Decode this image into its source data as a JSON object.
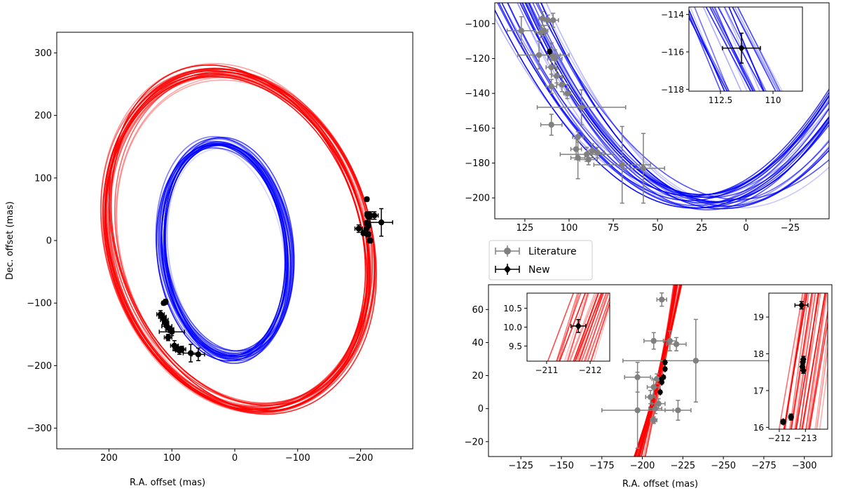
{
  "colors": {
    "outer_orbit": "#ff0000",
    "inner_orbit": "#0000ff",
    "literature": "#808080",
    "new": "#000000",
    "frame": "#000000"
  },
  "legend": {
    "literature_label": "Literature",
    "new_label": "New"
  },
  "chart_data": [
    {
      "id": "main",
      "type": "scatter",
      "title": "",
      "xlabel": "R.A. offset (mas)",
      "ylabel": "Dec. offset (mas)",
      "xlim": [
        283,
        -283
      ],
      "ylim": [
        -333,
        333
      ],
      "xticks": [
        200,
        100,
        0,
        -100,
        -200
      ],
      "yticks": [
        -300,
        -200,
        -100,
        0,
        100,
        200,
        300
      ],
      "orbits": [
        {
          "name": "outer (red)",
          "color": "#ff0000",
          "center": [
            -7,
            0
          ],
          "semi_axes": [
            202,
            275
          ],
          "tilt_deg": -17,
          "n_curves": 22
        },
        {
          "name": "inner (blue)",
          "color": "#0000ff",
          "center": [
            15,
            -15
          ],
          "semi_axes": [
            100,
            172
          ],
          "tilt_deg": -7,
          "n_curves": 22
        }
      ],
      "points": [
        {
          "x": 113,
          "y": -100,
          "xerr": 3,
          "yerr": 3,
          "set": "New"
        },
        {
          "x": 110,
          "y": -98,
          "xerr": 3,
          "yerr": 4,
          "set": "New"
        },
        {
          "x": 118,
          "y": -118,
          "xerr": 6,
          "yerr": 6,
          "set": "New"
        },
        {
          "x": 115,
          "y": -122,
          "xerr": 6,
          "yerr": 5,
          "set": "New"
        },
        {
          "x": 112,
          "y": -127,
          "xerr": 6,
          "yerr": 6,
          "set": "New"
        },
        {
          "x": 110,
          "y": -132,
          "xerr": 5,
          "yerr": 5,
          "set": "New"
        },
        {
          "x": 108,
          "y": -137,
          "xerr": 8,
          "yerr": 6,
          "set": "New"
        },
        {
          "x": 103,
          "y": -142,
          "xerr": 6,
          "yerr": 5,
          "set": "New"
        },
        {
          "x": 100,
          "y": -146,
          "xerr": 20,
          "yerr": 6,
          "set": "New"
        },
        {
          "x": 106,
          "y": -155,
          "xerr": 6,
          "yerr": 5,
          "set": "New"
        },
        {
          "x": 96,
          "y": -168,
          "xerr": 6,
          "yerr": 8,
          "set": "New"
        },
        {
          "x": 92,
          "y": -172,
          "xerr": 6,
          "yerr": 5,
          "set": "New"
        },
        {
          "x": 88,
          "y": -176,
          "xerr": 6,
          "yerr": 6,
          "set": "New"
        },
        {
          "x": 84,
          "y": -174,
          "xerr": 6,
          "yerr": 5,
          "set": "New"
        },
        {
          "x": 70,
          "y": -180,
          "xerr": 12,
          "yerr": 14,
          "set": "New"
        },
        {
          "x": 58,
          "y": -182,
          "xerr": 10,
          "yerr": 10,
          "set": "New"
        },
        {
          "x": -210,
          "y": 66,
          "xerr": 3,
          "yerr": 3,
          "set": "New"
        },
        {
          "x": -211,
          "y": 42,
          "xerr": 4,
          "yerr": 4,
          "set": "New"
        },
        {
          "x": -213,
          "y": 38,
          "xerr": 4,
          "yerr": 4,
          "set": "New"
        },
        {
          "x": -216,
          "y": 40,
          "xerr": 8,
          "yerr": 6,
          "set": "New"
        },
        {
          "x": -222,
          "y": 40,
          "xerr": 6,
          "yerr": 6,
          "set": "New"
        },
        {
          "x": -210,
          "y": 28,
          "xerr": 4,
          "yerr": 4,
          "set": "New"
        },
        {
          "x": -212,
          "y": 24,
          "xerr": 4,
          "yerr": 4,
          "set": "New"
        },
        {
          "x": -209,
          "y": 18,
          "xerr": 3,
          "yerr": 3,
          "set": "New"
        },
        {
          "x": -205,
          "y": 12,
          "xerr": 4,
          "yerr": 4,
          "set": "New"
        },
        {
          "x": -212,
          "y": 10,
          "xerr": 4,
          "yerr": 4,
          "set": "New"
        },
        {
          "x": -197,
          "y": 19,
          "xerr": 6,
          "yerr": 6,
          "set": "New"
        },
        {
          "x": -233,
          "y": 29,
          "xerr": 18,
          "yerr": 22,
          "set": "New"
        },
        {
          "x": -215,
          "y": 0,
          "xerr": 4,
          "yerr": 4,
          "set": "New"
        }
      ]
    },
    {
      "id": "zoom-inner",
      "type": "scatter",
      "xlim": [
        142,
        -47
      ],
      "ylim": [
        -212,
        -88
      ],
      "xticks": [
        125,
        100,
        75,
        50,
        25,
        0,
        -25
      ],
      "yticks": [
        -200,
        -180,
        -160,
        -140,
        -120,
        -100
      ],
      "points": [
        {
          "x": 127,
          "y": -104,
          "xerr": 8,
          "yerr": 8,
          "set": "Literature"
        },
        {
          "x": 115,
          "y": -97,
          "xerr": 2,
          "yerr": 4,
          "set": "Literature"
        },
        {
          "x": 112,
          "y": -98,
          "xerr": 2,
          "yerr": 3,
          "set": "Literature"
        },
        {
          "x": 109,
          "y": -98,
          "xerr": 3,
          "yerr": 4,
          "set": "Literature"
        },
        {
          "x": 116,
          "y": -105,
          "xerr": 3,
          "yerr": 3,
          "set": "Literature"
        },
        {
          "x": 114,
          "y": -104,
          "xerr": 2,
          "yerr": 3,
          "set": "Literature"
        },
        {
          "x": 117,
          "y": -118,
          "xerr": 12,
          "yerr": 8,
          "set": "Literature"
        },
        {
          "x": 110,
          "y": -118,
          "xerr": 10,
          "yerr": 7,
          "set": "Literature"
        },
        {
          "x": 108,
          "y": -120,
          "xerr": 4,
          "yerr": 5,
          "set": "Literature"
        },
        {
          "x": 110,
          "y": -125,
          "xerr": 3,
          "yerr": 4,
          "set": "Literature"
        },
        {
          "x": 107,
          "y": -130,
          "xerr": 3,
          "yerr": 4,
          "set": "Literature"
        },
        {
          "x": 104,
          "y": -135,
          "xerr": 3,
          "yerr": 4,
          "set": "Literature"
        },
        {
          "x": 110,
          "y": -136,
          "xerr": 3,
          "yerr": 4,
          "set": "Literature"
        },
        {
          "x": 101,
          "y": -140,
          "xerr": 2,
          "yerr": 3,
          "set": "Literature"
        },
        {
          "x": 93,
          "y": -148,
          "xerr": 25,
          "yerr": 10,
          "set": "Literature"
        },
        {
          "x": 110,
          "y": -158,
          "xerr": 6,
          "yerr": 6,
          "set": "Literature"
        },
        {
          "x": 95,
          "y": -165,
          "xerr": 3,
          "yerr": 3,
          "set": "Literature"
        },
        {
          "x": 96,
          "y": -172,
          "xerr": 3,
          "yerr": 6,
          "set": "Literature"
        },
        {
          "x": 90,
          "y": -175,
          "xerr": 15,
          "yerr": 4,
          "set": "Literature"
        },
        {
          "x": 95,
          "y": -177,
          "xerr": 4,
          "yerr": 12,
          "set": "Literature"
        },
        {
          "x": 89,
          "y": -178,
          "xerr": 5,
          "yerr": 3,
          "set": "Literature"
        },
        {
          "x": 84,
          "y": -174,
          "xerr": 4,
          "yerr": 3,
          "set": "Literature"
        },
        {
          "x": 87,
          "y": -173,
          "xerr": 3,
          "yerr": 4,
          "set": "Literature"
        },
        {
          "x": 70,
          "y": -181,
          "xerr": 16,
          "yerr": 22,
          "set": "Literature"
        },
        {
          "x": 58,
          "y": -183,
          "xerr": 12,
          "yerr": 20,
          "set": "Literature"
        },
        {
          "x": 111,
          "y": -116,
          "xerr": 1,
          "yerr": 1,
          "set": "New"
        }
      ]
    },
    {
      "id": "zoom-inner-inset",
      "type": "scatter",
      "xlim": [
        114.0,
        108.6
      ],
      "ylim": [
        -118.1,
        -113.6
      ],
      "xticks": [
        112.5,
        110.0
      ],
      "yticks": [
        -118,
        -116,
        -114
      ],
      "points": [
        {
          "x": 111.5,
          "y": -115.8,
          "xerr": 0.9,
          "yerr": 0.8,
          "set": "New"
        }
      ]
    },
    {
      "id": "zoom-outer",
      "type": "scatter",
      "xlabel": "R.A. offset (mas)",
      "xlim": [
        -105,
        -317
      ],
      "ylim": [
        -29,
        75
      ],
      "xticks": [
        -125,
        -150,
        -175,
        -200,
        -225,
        -250,
        -275,
        -300
      ],
      "yticks": [
        -20,
        0,
        20,
        40,
        60
      ],
      "points": [
        {
          "x": -212,
          "y": 66,
          "xerr": 3,
          "yerr": 4,
          "set": "Literature"
        },
        {
          "x": -207,
          "y": 41,
          "xerr": 6,
          "yerr": 5,
          "set": "Literature"
        },
        {
          "x": -217,
          "y": 41,
          "xerr": 4,
          "yerr": 6,
          "set": "Literature"
        },
        {
          "x": -221,
          "y": 39,
          "xerr": 6,
          "yerr": 4,
          "set": "Literature"
        },
        {
          "x": -233,
          "y": 29,
          "xerr": 45,
          "yerr": 25,
          "set": "Literature"
        },
        {
          "x": -197,
          "y": 19,
          "xerr": 8,
          "yerr": 9,
          "set": "Literature"
        },
        {
          "x": -209,
          "y": 18,
          "xerr": 3,
          "yerr": 3,
          "set": "Literature"
        },
        {
          "x": -207,
          "y": 13,
          "xerr": 4,
          "yerr": 5,
          "set": "Literature"
        },
        {
          "x": -205,
          "y": 7,
          "xerr": 3,
          "yerr": 4,
          "set": "Literature"
        },
        {
          "x": -210,
          "y": 3,
          "xerr": 4,
          "yerr": 3,
          "set": "Literature"
        },
        {
          "x": -208,
          "y": 0,
          "xerr": 4,
          "yerr": 3,
          "set": "Literature"
        },
        {
          "x": -197,
          "y": -1,
          "xerr": 22,
          "yerr": 23,
          "set": "Literature"
        },
        {
          "x": -222,
          "y": -1,
          "xerr": 8,
          "yerr": 6,
          "set": "Literature"
        },
        {
          "x": -207,
          "y": -7,
          "xerr": 2,
          "yerr": 2,
          "set": "Literature"
        },
        {
          "x": -211,
          "y": 10,
          "xerr": 1,
          "yerr": 1,
          "set": "New"
        },
        {
          "x": -212,
          "y": 16,
          "xerr": 1,
          "yerr": 1,
          "set": "New"
        },
        {
          "x": -212,
          "y": 18,
          "xerr": 1,
          "yerr": 1,
          "set": "New"
        },
        {
          "x": -213,
          "y": 19,
          "xerr": 1,
          "yerr": 1,
          "set": "New"
        },
        {
          "x": -214,
          "y": 24,
          "xerr": 1,
          "yerr": 1,
          "set": "New"
        },
        {
          "x": -214,
          "y": 28,
          "xerr": 1,
          "yerr": 1,
          "set": "New"
        }
      ]
    },
    {
      "id": "zoom-outer-inset-left",
      "type": "scatter",
      "xlim": [
        -210.55,
        -212.45
      ],
      "ylim": [
        9.1,
        10.9
      ],
      "xticks": [
        -211,
        -212
      ],
      "yticks": [
        9.5,
        10.0,
        10.5
      ],
      "points": [
        {
          "x": -211.73,
          "y": 10.03,
          "xerr": 0.17,
          "yerr": 0.17,
          "set": "New"
        }
      ]
    },
    {
      "id": "zoom-outer-inset-right",
      "type": "scatter",
      "xlim": [
        -211.6,
        -213.85
      ],
      "ylim": [
        15.95,
        19.65
      ],
      "xticks": [
        -212,
        -213
      ],
      "yticks": [
        16,
        17,
        18,
        19
      ],
      "points": [
        {
          "x": -212.15,
          "y": 16.15,
          "xerr": 0.08,
          "yerr": 0.06,
          "set": "New"
        },
        {
          "x": -212.45,
          "y": 16.28,
          "xerr": 0.08,
          "yerr": 0.08,
          "set": "New"
        },
        {
          "x": -212.88,
          "y": 17.65,
          "xerr": 0.06,
          "yerr": 0.1,
          "set": "New"
        },
        {
          "x": -212.92,
          "y": 17.55,
          "xerr": 0.05,
          "yerr": 0.08,
          "set": "New"
        },
        {
          "x": -212.9,
          "y": 17.78,
          "xerr": 0.06,
          "yerr": 0.08,
          "set": "New"
        },
        {
          "x": -212.92,
          "y": 17.85,
          "xerr": 0.05,
          "yerr": 0.08,
          "set": "New"
        },
        {
          "x": -212.85,
          "y": 19.32,
          "xerr": 0.25,
          "yerr": 0.1,
          "set": "New"
        }
      ]
    }
  ]
}
